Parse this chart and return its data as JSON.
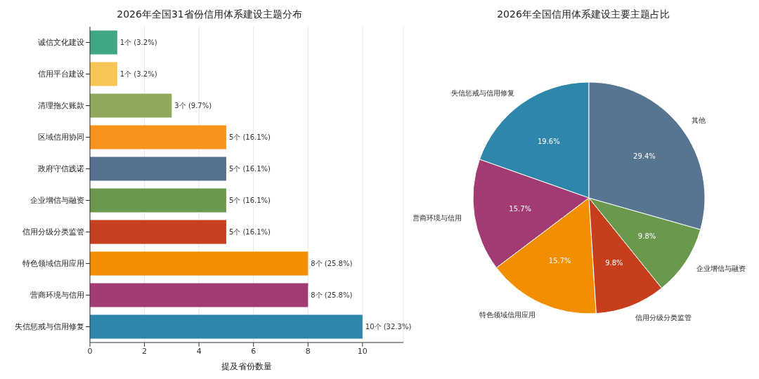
{
  "chart_data": [
    {
      "type": "bar",
      "title": "2026年全国31省份信用体系建设主题分布",
      "orientation": "horizontal",
      "xlabel": "提及省份数量",
      "categories": [
        "诚信文化建设",
        "信用平台建设",
        "清理拖欠账款",
        "区域信用协同",
        "政府守信践诺",
        "企业增信与融资",
        "信用分级分类监管",
        "特色领域信用应用",
        "营商环境与信用",
        "失信惩戒与信用修复"
      ],
      "values": [
        1,
        1,
        3,
        5,
        5,
        5,
        5,
        8,
        8,
        10
      ],
      "colors": [
        "#3fa584",
        "#f6c555",
        "#8fa85a",
        "#f7941d",
        "#56718f",
        "#6a994e",
        "#c63f1e",
        "#f18f01",
        "#a23b72",
        "#2e86ab"
      ],
      "value_labels": [
        "1个 (3.2%)",
        "1个 (3.2%)",
        "3个 (9.7%)",
        "5个 (16.1%)",
        "5个 (16.1%)",
        "5个 (16.1%)",
        "5个 (16.1%)",
        "8个 (25.8%)",
        "8个 (25.8%)",
        "10个 (32.3%)"
      ],
      "xlim": [
        0,
        11.5
      ],
      "xticks": [
        0,
        2,
        4,
        6,
        8,
        10
      ],
      "grid": "x",
      "legend": false
    },
    {
      "type": "pie",
      "title": "2026年全国信用体系建设主要主题占比",
      "categories": [
        "失信惩戒与信用修复",
        "营商环境与信用",
        "特色领域信用应用",
        "信用分级分类监管",
        "企业增信与融资",
        "其他"
      ],
      "values": [
        19.6,
        15.7,
        15.7,
        9.8,
        9.8,
        29.4
      ],
      "colors": [
        "#2e86ab",
        "#a23b72",
        "#f18f01",
        "#c73e1d",
        "#6a994e",
        "#577590"
      ],
      "value_labels": [
        "19.6%",
        "15.7%",
        "15.7%",
        "9.8%",
        "9.8%",
        "29.4%"
      ],
      "legend": false
    }
  ]
}
